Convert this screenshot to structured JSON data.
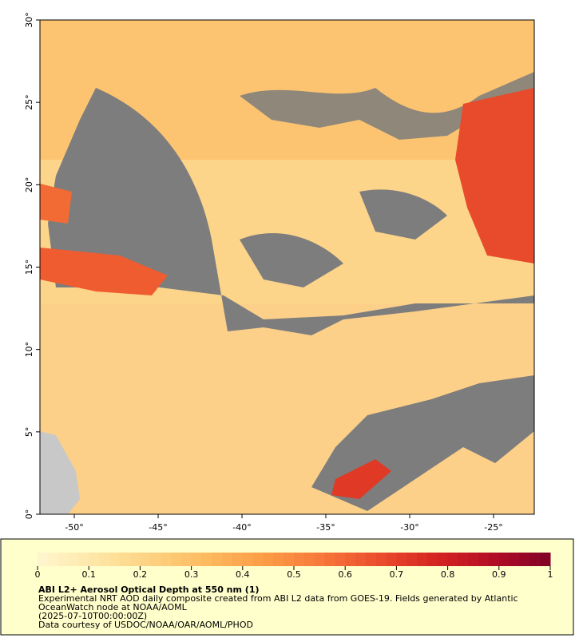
{
  "map": {
    "xlim": [
      -52.05,
      -22.57
    ],
    "ylim": [
      0,
      30
    ],
    "xticks": [
      {
        "value": -50,
        "label": "-50°"
      },
      {
        "value": -45,
        "label": "-45°"
      },
      {
        "value": -40,
        "label": "-40°"
      },
      {
        "value": -35,
        "label": "-35°"
      },
      {
        "value": -30,
        "label": "-30°"
      },
      {
        "value": -25,
        "label": "-25°"
      }
    ],
    "yticks": [
      {
        "value": 0,
        "label": "0°"
      },
      {
        "value": 5,
        "label": "5°"
      },
      {
        "value": 10,
        "label": "10°"
      },
      {
        "value": 15,
        "label": "15°"
      },
      {
        "value": 20,
        "label": "20°"
      },
      {
        "value": 25,
        "label": "25°"
      },
      {
        "value": 30,
        "label": "30°"
      }
    ]
  },
  "colorbar": {
    "lim": [
      0,
      1
    ],
    "ticks": [
      0,
      0.1,
      0.2,
      0.3,
      0.4,
      0.5,
      0.6,
      0.7,
      0.8,
      0.9,
      1
    ],
    "colors": [
      "#fff6d0",
      "#fee7a6",
      "#fdd281",
      "#fdb95e",
      "#fb9c45",
      "#f7773a",
      "#ea4c2c",
      "#d52321",
      "#b30d26",
      "#800026"
    ]
  },
  "legend": {
    "title": "ABI L2+ Aerosol Optical Depth at 550 nm (1)",
    "lines": [
      "Experimental NRT AOD daily composite created from ABI L2 data from GOES-19. Fields generated by Atlantic",
      "OceanWatch node at NOAA/AOML",
      "(2025-07-10T00:00:00Z)",
      "Data courtesy of USDOC/NOAA/OAR/AOML/PHOD"
    ]
  }
}
